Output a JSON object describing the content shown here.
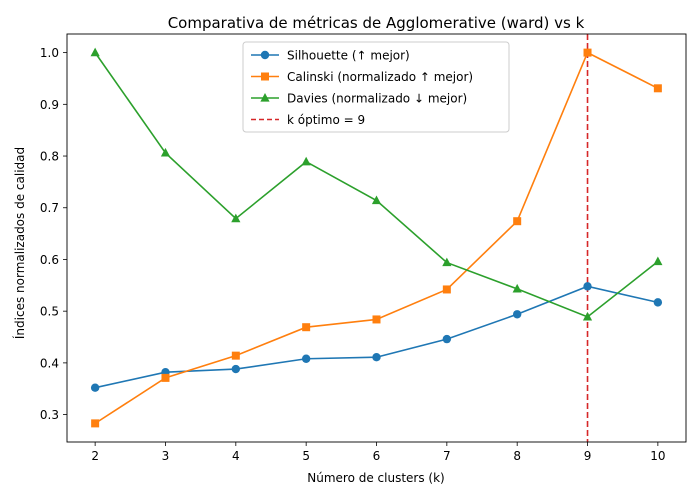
{
  "chart_data": {
    "type": "line",
    "title": "Comparativa de métricas de Agglomerative (ward) vs k",
    "xlabel": "Número de clusters (k)",
    "ylabel": "Índices normalizados de calidad",
    "x": [
      2,
      3,
      4,
      5,
      6,
      7,
      8,
      9,
      10
    ],
    "xlim": [
      1.6,
      10.4
    ],
    "ylim": [
      0.247,
      1.036
    ],
    "xticks": [
      "2",
      "3",
      "4",
      "5",
      "6",
      "7",
      "8",
      "9",
      "10"
    ],
    "yticks": [
      "0.3",
      "0.4",
      "0.5",
      "0.6",
      "0.7",
      "0.8",
      "0.9",
      "1.0"
    ],
    "series": [
      {
        "name": "Silhouette (↑ mejor)",
        "color": "#1f77b4",
        "marker": "circle",
        "values": [
          0.352,
          0.382,
          0.388,
          0.408,
          0.411,
          0.446,
          0.494,
          0.548,
          0.517
        ]
      },
      {
        "name": "Calinski (normalizado ↑ mejor)",
        "color": "#ff7f0e",
        "marker": "square",
        "values": [
          0.283,
          0.371,
          0.414,
          0.469,
          0.484,
          0.542,
          0.674,
          1.0,
          0.931
        ]
      },
      {
        "name": "Davies (normalizado ↓ mejor)",
        "color": "#2ca02c",
        "marker": "triangle",
        "values": [
          1.0,
          0.806,
          0.679,
          0.789,
          0.714,
          0.594,
          0.543,
          0.489,
          0.596
        ]
      }
    ],
    "reference_line": {
      "name": "k óptimo = 9",
      "x": 9,
      "color": "#d62728",
      "style": "dashed"
    },
    "legend_position": "top-center",
    "grid": false
  }
}
